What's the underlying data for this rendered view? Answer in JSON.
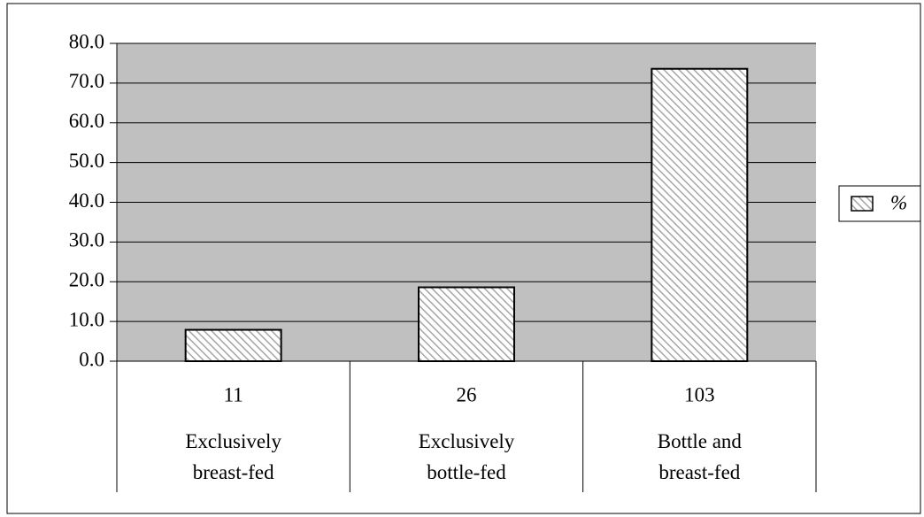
{
  "chart_data": {
    "type": "bar",
    "categories": [
      "Exclusively breast-fed",
      "Exclusively bottle-fed",
      "Bottle and breast-fed"
    ],
    "category_counts": [
      11,
      26,
      103
    ],
    "series": [
      {
        "name": "%",
        "color": "#a6a6a6",
        "values": [
          7.9,
          18.6,
          73.6
        ]
      }
    ],
    "ylim": [
      0,
      80
    ],
    "yticks": [
      {
        "value": 0,
        "label": "0.0"
      },
      {
        "value": 10,
        "label": "10.0"
      },
      {
        "value": 20,
        "label": "20.0"
      },
      {
        "value": 30,
        "label": "30.0"
      },
      {
        "value": 40,
        "label": "40.0"
      },
      {
        "value": 50,
        "label": "50.0"
      },
      {
        "value": 60,
        "label": "60.0"
      },
      {
        "value": 70,
        "label": "70.0"
      },
      {
        "value": 80,
        "label": "80.0"
      }
    ],
    "grid": true,
    "legend": "right"
  }
}
